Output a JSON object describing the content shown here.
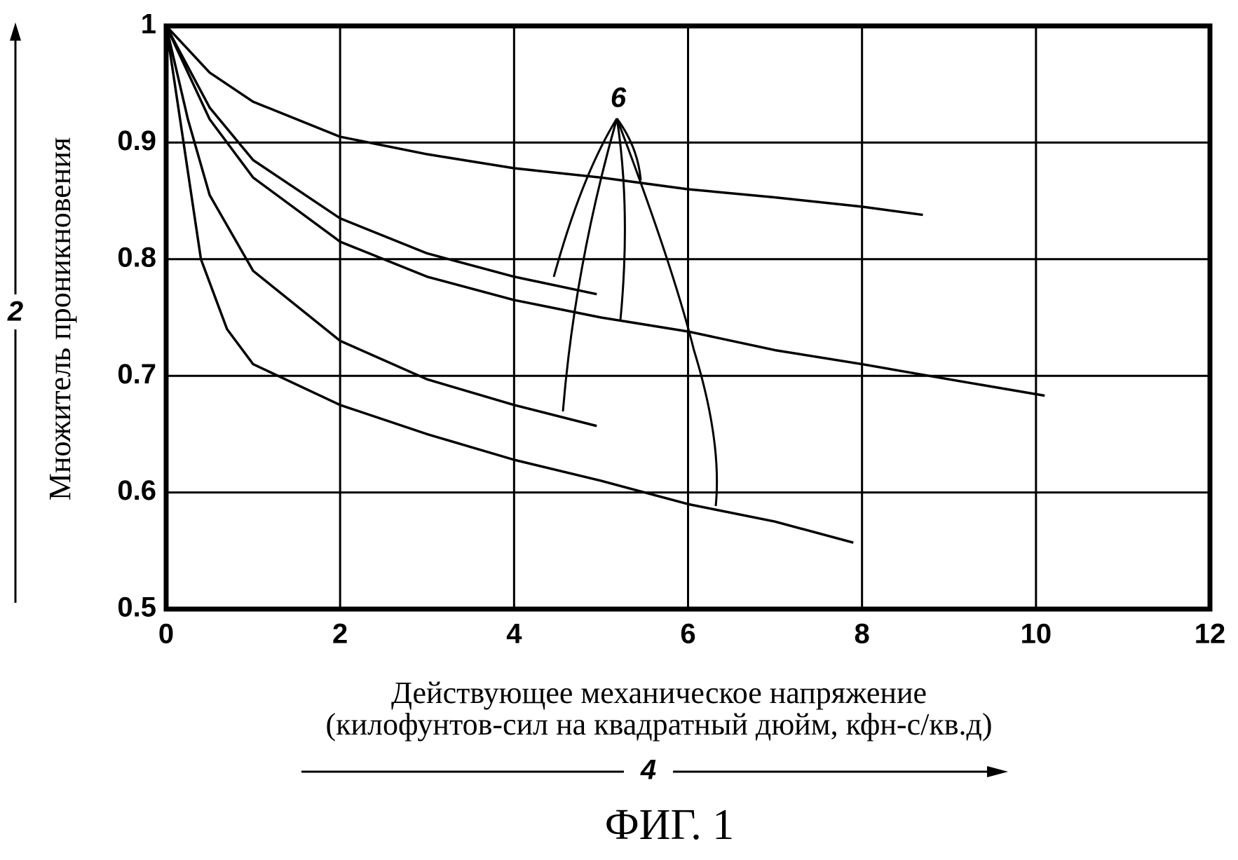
{
  "chart_data": {
    "type": "line",
    "y_label": "Множитель проникновения",
    "x_label": [
      "Действующее механическое напряжение",
      "(килофунтов-сил на квадратный дюйм, кфн-с/кв.д)"
    ],
    "y_arrow_label": "2",
    "x_arrow_label": "4",
    "annotation": "6",
    "caption": "ФИГ. 1",
    "xlim": [
      0,
      12
    ],
    "ylim": [
      0.5,
      1
    ],
    "xticks": [
      0,
      2,
      4,
      6,
      8,
      10,
      12
    ],
    "yticks": [
      0.5,
      0.6,
      0.7,
      0.8,
      0.9,
      1
    ],
    "grid": true,
    "series": [
      {
        "color": "#000000",
        "x": [
          0,
          0.5,
          1,
          2,
          3,
          4,
          5,
          6,
          7,
          8,
          8.7
        ],
        "values": [
          1,
          0.96,
          0.935,
          0.905,
          0.89,
          0.878,
          0.87,
          0.86,
          0.853,
          0.845,
          0.838
        ]
      },
      {
        "color": "#000000",
        "x": [
          0,
          0.5,
          1,
          2,
          3,
          4,
          4.95
        ],
        "values": [
          1,
          0.93,
          0.885,
          0.835,
          0.805,
          0.785,
          0.77
        ]
      },
      {
        "color": "#000000",
        "x": [
          0,
          0.5,
          1,
          2,
          3,
          4,
          5,
          6,
          7,
          8,
          9,
          10.1
        ],
        "values": [
          1,
          0.92,
          0.87,
          0.815,
          0.785,
          0.765,
          0.75,
          0.738,
          0.722,
          0.71,
          0.697,
          0.683
        ]
      },
      {
        "color": "#000000",
        "x": [
          0,
          0.25,
          0.5,
          1,
          2,
          3,
          4,
          4.95
        ],
        "values": [
          1,
          0.92,
          0.855,
          0.79,
          0.73,
          0.697,
          0.675,
          0.657
        ]
      },
      {
        "color": "#000000",
        "x": [
          0,
          0.2,
          0.4,
          0.7,
          1,
          2,
          3,
          4,
          5,
          6,
          7,
          7.9
        ],
        "values": [
          1,
          0.9,
          0.8,
          0.74,
          0.71,
          0.675,
          0.65,
          0.628,
          0.61,
          0.59,
          0.575,
          0.557
        ]
      }
    ]
  }
}
